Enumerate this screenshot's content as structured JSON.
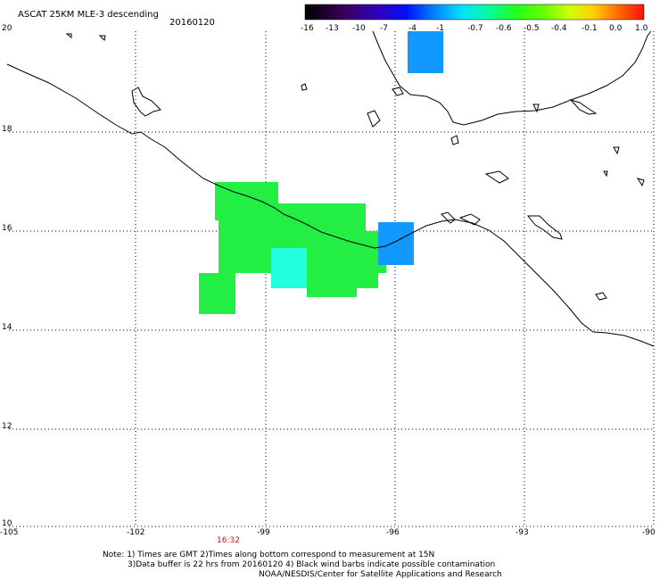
{
  "title": "ASCAT 25KM MLE-3 descending",
  "date": "20160120",
  "time_label": "16:32",
  "colorbar": {
    "labels": [
      "-16",
      "-13",
      "-10",
      "-7",
      "-4",
      "-1",
      "-0.7",
      "-0.6",
      "-0.5",
      "-0.4",
      "-0.1",
      "0.0",
      "1.0"
    ]
  },
  "axes": {
    "lat_labels": [
      "20",
      "18",
      "16",
      "14",
      "12",
      "10"
    ],
    "lon_labels": [
      "-105",
      "-102",
      "-99",
      "-96",
      "-93",
      "-90"
    ]
  },
  "notes": {
    "line1": "Note: 1) Times are GMT 2)Times along bottom correspond to measurement at 15N",
    "line2": "3)Data buffer is 22 hrs from 20160120 4) Black wind barbs indicate possible contamination",
    "line3": "NOAA/NESDIS/Center for Satellite Applications and Research"
  },
  "colors": {
    "green": "#22ee44",
    "cyan": "#22ffdd",
    "blue": "#1199ff",
    "coast": "#000000"
  }
}
